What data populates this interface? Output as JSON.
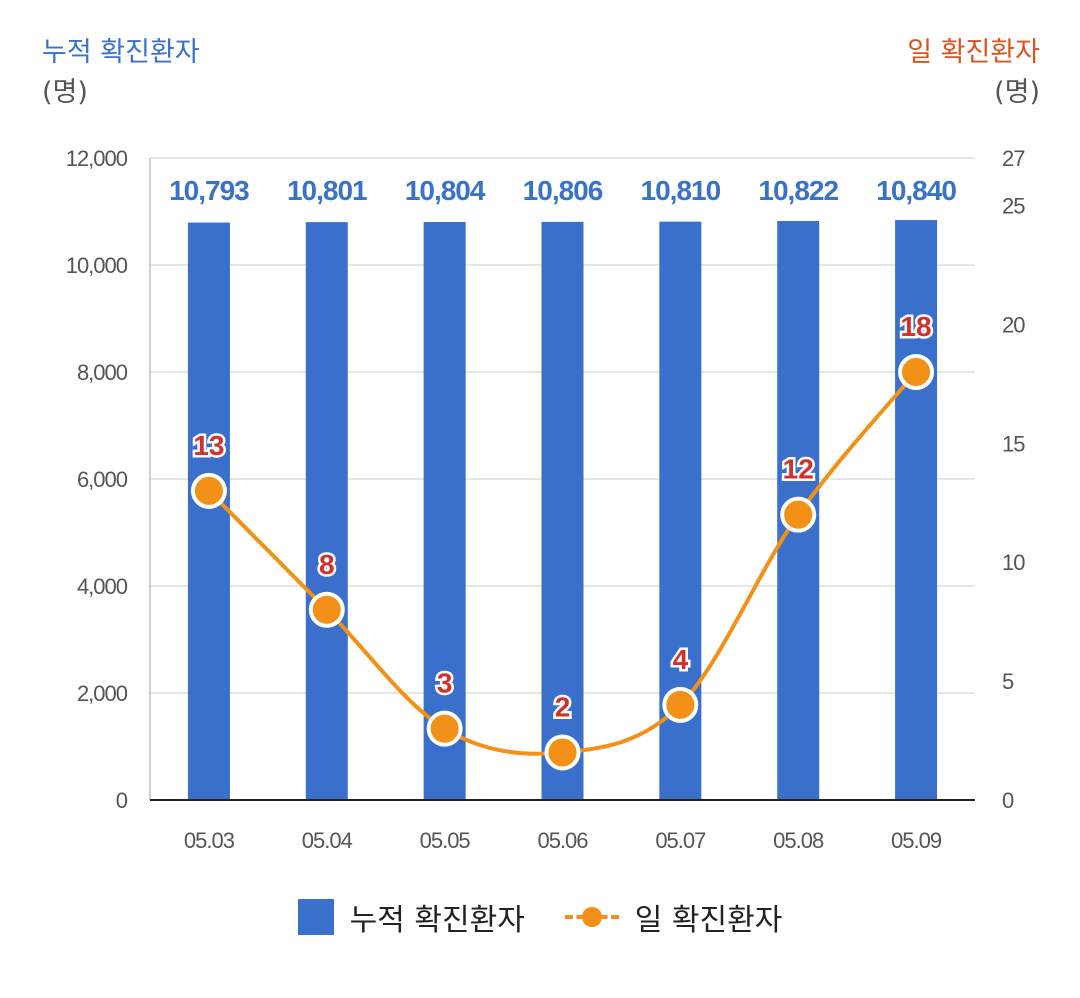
{
  "axes": {
    "left_title": "누적 확진환자",
    "left_unit": "(명)",
    "right_title": "일 확진환자",
    "right_unit": "(명)"
  },
  "legend": {
    "bar": "누적 확진환자",
    "line": "일 확진환자"
  },
  "colors": {
    "bar": "#3a6fcc",
    "bar_label": "#3a72c9",
    "line": "#f39018",
    "line_label": "#d0312d",
    "left_title": "#3a72c9",
    "right_title": "#d9541e",
    "grid": "#e6e6e6"
  },
  "chart_data": {
    "type": "bar",
    "categories": [
      "05.03",
      "05.04",
      "05.05",
      "05.06",
      "05.07",
      "05.08",
      "05.09"
    ],
    "series": [
      {
        "name": "누적 확진환자",
        "type": "bar",
        "axis": "left",
        "values": [
          10793,
          10801,
          10804,
          10806,
          10810,
          10822,
          10840
        ],
        "labels": [
          "10,793",
          "10,801",
          "10,804",
          "10,806",
          "10,810",
          "10,822",
          "10,840"
        ]
      },
      {
        "name": "일 확진환자",
        "type": "line",
        "axis": "right",
        "values": [
          13,
          8,
          3,
          2,
          4,
          12,
          18
        ]
      }
    ],
    "left_axis": {
      "ylim": [
        0,
        12000
      ],
      "ticks": [
        "0",
        "2,000",
        "4,000",
        "6,000",
        "8,000",
        "10,000",
        "12,000"
      ],
      "tick_values": [
        0,
        2000,
        4000,
        6000,
        8000,
        10000,
        12000
      ]
    },
    "right_axis": {
      "ylim": [
        0,
        27
      ],
      "ticks": [
        "0",
        "5",
        "10",
        "15",
        "20",
        "25",
        "27"
      ],
      "tick_values": [
        0,
        5,
        10,
        15,
        20,
        25,
        27
      ]
    },
    "grid": true,
    "legend_position": "bottom"
  }
}
